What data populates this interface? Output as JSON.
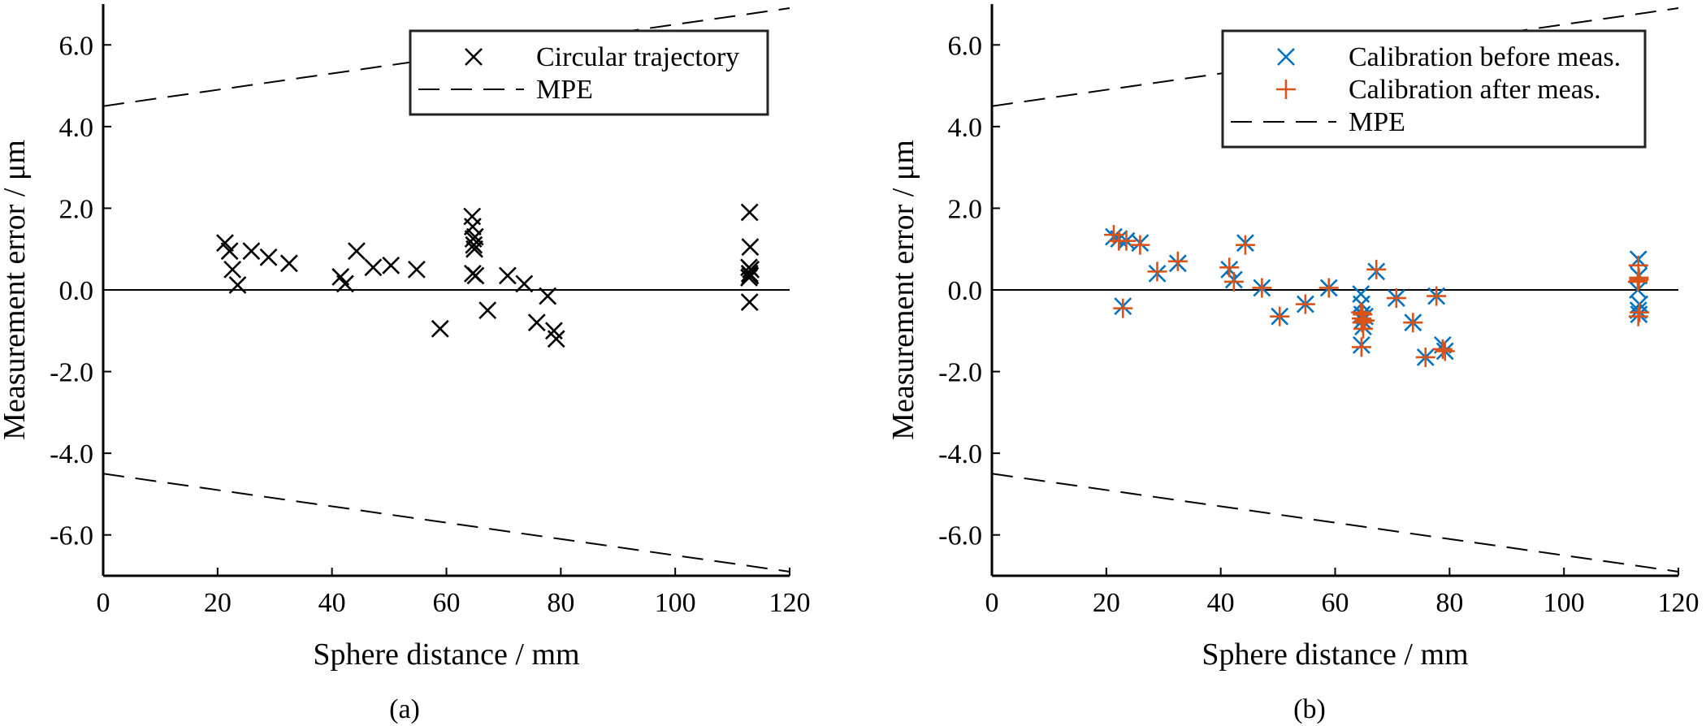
{
  "chart_data": [
    {
      "type": "scatter",
      "caption": "(a)",
      "xlabel": "Sphere distance / mm",
      "ylabel": "Measurement error / μm",
      "xlim": [
        0,
        120
      ],
      "ylim": [
        -7,
        7
      ],
      "xticks": [
        0,
        20,
        40,
        60,
        80,
        100,
        120
      ],
      "xtick_labels": [
        "0",
        "20",
        "40",
        "60",
        "80",
        "100",
        "120"
      ],
      "yticks": [
        6,
        4,
        2,
        0,
        -2,
        -4,
        -6
      ],
      "ytick_labels": [
        "6.0",
        "4.0",
        "2.0",
        "0.0",
        "-2.0",
        "-4.0",
        "-6.0"
      ],
      "grid": false,
      "legend_position": "top-right",
      "zero_line": true,
      "series": [
        {
          "name": "Circular trajectory",
          "marker": "x",
          "color": "#000000",
          "points": [
            [
              21.3,
              1.15
            ],
            [
              22.1,
              0.95
            ],
            [
              22.6,
              0.5
            ],
            [
              23.5,
              0.12
            ],
            [
              25.9,
              0.95
            ],
            [
              28.9,
              0.8
            ],
            [
              32.5,
              0.65
            ],
            [
              41.5,
              0.32
            ],
            [
              42.3,
              0.15
            ],
            [
              44.3,
              0.95
            ],
            [
              47.2,
              0.55
            ],
            [
              50.3,
              0.6
            ],
            [
              54.8,
              0.5
            ],
            [
              58.9,
              -0.95
            ],
            [
              64.5,
              1.8
            ],
            [
              64.6,
              1.55
            ],
            [
              64.7,
              1.25
            ],
            [
              64.8,
              1.1
            ],
            [
              64.9,
              1.0
            ],
            [
              65.0,
              1.3
            ],
            [
              64.6,
              0.4
            ],
            [
              65.1,
              0.35
            ],
            [
              67.2,
              -0.5
            ],
            [
              70.7,
              0.35
            ],
            [
              73.6,
              0.15
            ],
            [
              75.8,
              -0.8
            ],
            [
              77.7,
              -0.15
            ],
            [
              78.8,
              -1.0
            ],
            [
              79.2,
              -1.2
            ],
            [
              113.0,
              1.9
            ],
            [
              113.1,
              1.05
            ],
            [
              112.9,
              0.55
            ],
            [
              113.2,
              0.5
            ],
            [
              113.0,
              0.4
            ],
            [
              113.1,
              0.35
            ],
            [
              112.9,
              0.3
            ],
            [
              113.0,
              -0.3
            ]
          ]
        },
        {
          "name": "MPE",
          "style": "dashed",
          "color": "#000000",
          "x": [
            0,
            120
          ],
          "upper": [
            4.5,
            6.9
          ],
          "lower": [
            -4.5,
            -6.9
          ]
        }
      ]
    },
    {
      "type": "scatter",
      "caption": "(b)",
      "xlabel": "Sphere distance / mm",
      "ylabel": "Measurement error / μm",
      "xlim": [
        0,
        120
      ],
      "ylim": [
        -7,
        7
      ],
      "xticks": [
        0,
        20,
        40,
        60,
        80,
        100,
        120
      ],
      "xtick_labels": [
        "0",
        "20",
        "40",
        "60",
        "80",
        "100",
        "120"
      ],
      "yticks": [
        6,
        4,
        2,
        0,
        -2,
        -4,
        -6
      ],
      "ytick_labels": [
        "6.0",
        "4.0",
        "2.0",
        "0.0",
        "-2.0",
        "-4.0",
        "-6.0"
      ],
      "grid": false,
      "legend_position": "top-right",
      "zero_line": true,
      "series": [
        {
          "name": "Calibration before meas.",
          "marker": "x",
          "color": "#0072BD",
          "points": [
            [
              21.3,
              1.3
            ],
            [
              22.2,
              1.25
            ],
            [
              22.9,
              -0.4
            ],
            [
              23.5,
              1.2
            ],
            [
              25.9,
              1.15
            ],
            [
              28.9,
              0.4
            ],
            [
              32.5,
              0.65
            ],
            [
              41.5,
              0.5
            ],
            [
              42.3,
              0.25
            ],
            [
              44.3,
              1.15
            ],
            [
              47.2,
              0.05
            ],
            [
              50.3,
              -0.65
            ],
            [
              54.8,
              -0.35
            ],
            [
              58.9,
              0.05
            ],
            [
              64.5,
              -0.1
            ],
            [
              64.6,
              -0.35
            ],
            [
              64.7,
              -0.6
            ],
            [
              64.8,
              -0.75
            ],
            [
              64.9,
              -0.9
            ],
            [
              64.6,
              -1.35
            ],
            [
              65.2,
              -0.65
            ],
            [
              67.2,
              0.45
            ],
            [
              70.7,
              -0.2
            ],
            [
              73.6,
              -0.8
            ],
            [
              75.8,
              -1.65
            ],
            [
              77.7,
              -0.15
            ],
            [
              78.8,
              -1.35
            ],
            [
              79.2,
              -1.5
            ],
            [
              113.0,
              0.75
            ],
            [
              113.1,
              0.35
            ],
            [
              112.9,
              0.0
            ],
            [
              113.2,
              -0.35
            ],
            [
              113.0,
              -0.5
            ],
            [
              113.1,
              -0.6
            ]
          ]
        },
        {
          "name": "Calibration after meas.",
          "marker": "+",
          "color": "#D95319",
          "points": [
            [
              21.3,
              1.35
            ],
            [
              22.2,
              1.2
            ],
            [
              22.9,
              -0.45
            ],
            [
              23.5,
              1.2
            ],
            [
              25.9,
              1.1
            ],
            [
              28.9,
              0.45
            ],
            [
              32.5,
              0.7
            ],
            [
              41.5,
              0.55
            ],
            [
              42.3,
              0.2
            ],
            [
              44.3,
              1.1
            ],
            [
              47.2,
              0.05
            ],
            [
              50.3,
              -0.65
            ],
            [
              54.8,
              -0.35
            ],
            [
              58.9,
              0.05
            ],
            [
              64.5,
              -0.55
            ],
            [
              64.6,
              -0.7
            ],
            [
              64.7,
              -0.8
            ],
            [
              64.8,
              -0.6
            ],
            [
              64.9,
              -0.95
            ],
            [
              64.6,
              -1.4
            ],
            [
              65.2,
              -0.75
            ],
            [
              67.2,
              0.5
            ],
            [
              70.7,
              -0.2
            ],
            [
              73.6,
              -0.8
            ],
            [
              75.8,
              -1.65
            ],
            [
              77.7,
              -0.15
            ],
            [
              78.8,
              -1.45
            ],
            [
              79.2,
              -1.5
            ],
            [
              113.0,
              0.6
            ],
            [
              113.1,
              0.25
            ],
            [
              112.9,
              0.2
            ],
            [
              113.2,
              -0.55
            ],
            [
              113.0,
              -0.65
            ],
            [
              113.1,
              0.3
            ]
          ]
        },
        {
          "name": "MPE",
          "style": "dashed",
          "color": "#000000",
          "x": [
            0,
            120
          ],
          "upper": [
            4.5,
            6.9
          ],
          "lower": [
            -4.5,
            -6.9
          ]
        }
      ]
    }
  ]
}
